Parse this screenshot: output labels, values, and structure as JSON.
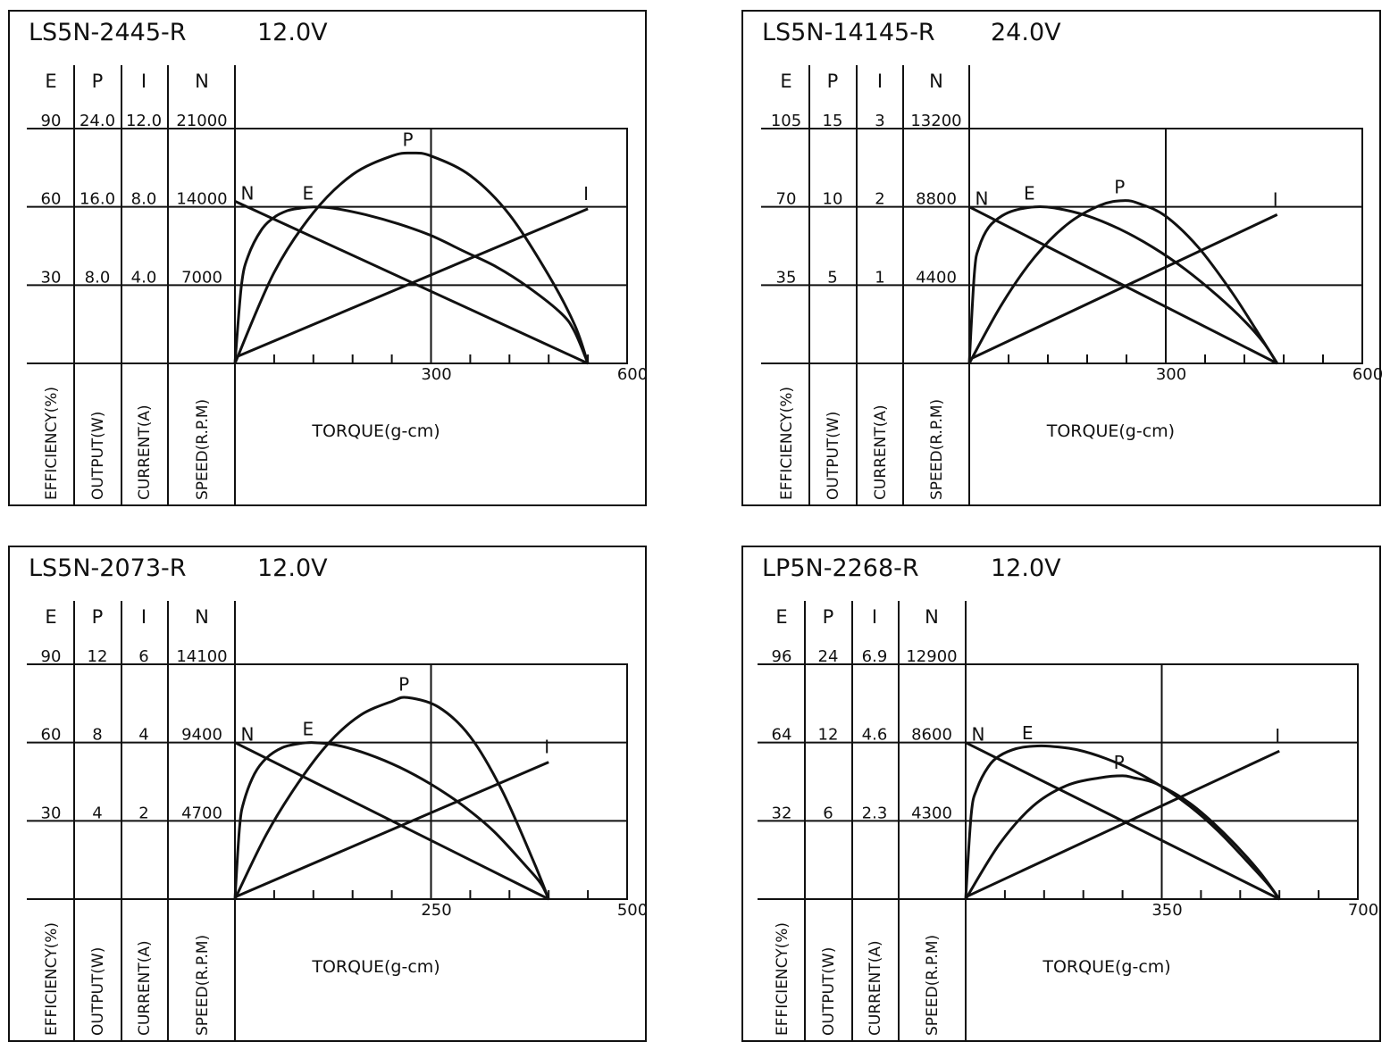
{
  "colors": {
    "ink": "#111111",
    "paper": "#ffffff"
  },
  "chart_data": [
    {
      "type": "line",
      "title": "LS5N-2445-R",
      "voltage": "12.0V",
      "xlabel": "TORQUE(g-cm)",
      "xlim": [
        0,
        600
      ],
      "xticks": [
        {
          "value": 300,
          "label": "300"
        },
        {
          "value": 600,
          "label": "600"
        }
      ],
      "columns": [
        {
          "symbol": "E",
          "unit_label": "EFFICIENCY(%)",
          "scale_max": 90,
          "ticks": [
            "30",
            "60",
            "90"
          ]
        },
        {
          "symbol": "P",
          "unit_label": "OUTPUT(W)",
          "scale_max": 24,
          "ticks": [
            "8.0",
            "16.0",
            "24.0"
          ]
        },
        {
          "symbol": "I",
          "unit_label": "CURRENT(A)",
          "scale_max": 12,
          "ticks": [
            "4.0",
            "8.0",
            "12.0"
          ]
        },
        {
          "symbol": "N",
          "unit_label": "SPEED(R.P.M)",
          "scale_max": 21000,
          "ticks": [
            "7000",
            "14000",
            "21000"
          ]
        }
      ],
      "series": [
        {
          "name": "N",
          "x": [
            0,
            540
          ],
          "y": [
            14500,
            0
          ]
        },
        {
          "name": "E",
          "x": [
            0,
            10,
            20,
            40,
            60,
            80,
            100,
            120,
            150,
            200,
            250,
            300,
            350,
            400,
            450,
            500,
            520,
            540
          ],
          "y": [
            0,
            30,
            41,
            51,
            56,
            58.5,
            59.5,
            60,
            59.5,
            57,
            53.5,
            49,
            43,
            37,
            29,
            19,
            12,
            0
          ]
        },
        {
          "name": "P",
          "x": [
            0,
            60,
            120,
            180,
            240,
            270,
            300,
            360,
            420,
            480,
            520,
            540
          ],
          "y": [
            0,
            9.3,
            15.4,
            19.3,
            21.2,
            21.5,
            21.2,
            19.2,
            15.2,
            9.0,
            3.9,
            0
          ]
        },
        {
          "name": "I",
          "x": [
            0,
            540
          ],
          "y": [
            0.3,
            7.9
          ]
        }
      ]
    },
    {
      "type": "line",
      "title": "LS5N-14145-R",
      "voltage": "24.0V",
      "xlabel": "TORQUE(g-cm)",
      "xlim": [
        0,
        600
      ],
      "xticks": [
        {
          "value": 300,
          "label": "300"
        },
        {
          "value": 600,
          "label": "600"
        }
      ],
      "columns": [
        {
          "symbol": "E",
          "unit_label": "EFFICIENCY(%)",
          "scale_max": 105,
          "ticks": [
            "35",
            "70",
            "105"
          ]
        },
        {
          "symbol": "P",
          "unit_label": "OUTPUT(W)",
          "scale_max": 15,
          "ticks": [
            "5",
            "10",
            "15"
          ]
        },
        {
          "symbol": "I",
          "unit_label": "CURRENT(A)",
          "scale_max": 3,
          "ticks": [
            "1",
            "2",
            "3"
          ]
        },
        {
          "symbol": "N",
          "unit_label": "SPEED(R.P.M)",
          "scale_max": 13200,
          "ticks": [
            "4400",
            "8800",
            "13200"
          ]
        }
      ],
      "series": [
        {
          "name": "N",
          "x": [
            0,
            470
          ],
          "y": [
            8800,
            0
          ]
        },
        {
          "name": "E",
          "x": [
            0,
            8,
            15,
            30,
            50,
            70,
            100,
            130,
            180,
            230,
            280,
            330,
            380,
            420,
            450,
            470
          ],
          "y": [
            0,
            41,
            52,
            61,
            66,
            68.5,
            70,
            69.5,
            66,
            60,
            52,
            42,
            30,
            19,
            9,
            0
          ]
        },
        {
          "name": "P",
          "x": [
            0,
            50,
            100,
            150,
            200,
            235,
            260,
            300,
            350,
            400,
            440,
            470
          ],
          "y": [
            0,
            3.8,
            6.8,
            8.9,
            10.1,
            10.4,
            10.2,
            9.4,
            7.4,
            4.6,
            2.0,
            0
          ]
        },
        {
          "name": "I",
          "x": [
            0,
            470
          ],
          "y": [
            0.05,
            1.9
          ]
        }
      ]
    },
    {
      "type": "line",
      "title": "LS5N-2073-R",
      "voltage": "12.0V",
      "xlabel": "TORQUE(g-cm)",
      "xlim": [
        0,
        500
      ],
      "xticks": [
        {
          "value": 250,
          "label": "250"
        },
        {
          "value": 500,
          "label": "500"
        }
      ],
      "columns": [
        {
          "symbol": "E",
          "unit_label": "EFFICIENCY(%)",
          "scale_max": 90,
          "ticks": [
            "30",
            "60",
            "90"
          ]
        },
        {
          "symbol": "P",
          "unit_label": "OUTPUT(W)",
          "scale_max": 12,
          "ticks": [
            "4",
            "8",
            "12"
          ]
        },
        {
          "symbol": "I",
          "unit_label": "CURRENT(A)",
          "scale_max": 6,
          "ticks": [
            "2",
            "4",
            "6"
          ]
        },
        {
          "symbol": "N",
          "unit_label": "SPEED(R.P.M)",
          "scale_max": 14100,
          "ticks": [
            "4700",
            "9400",
            "14100"
          ]
        }
      ],
      "series": [
        {
          "name": "N",
          "x": [
            0,
            400
          ],
          "y": [
            9400,
            0
          ]
        },
        {
          "name": "E",
          "x": [
            0,
            6,
            12,
            25,
            40,
            60,
            80,
            100,
            130,
            170,
            210,
            250,
            290,
            330,
            370,
            390,
            400
          ],
          "y": [
            0,
            28,
            38,
            48,
            54,
            58,
            59.5,
            60,
            59,
            55.5,
            50.5,
            44,
            36,
            26,
            13,
            6,
            0
          ]
        },
        {
          "name": "P",
          "x": [
            0,
            40,
            80,
            120,
            160,
            200,
            220,
            260,
            300,
            340,
            380,
            400
          ],
          "y": [
            0,
            3.3,
            5.9,
            8.0,
            9.4,
            10.1,
            10.3,
            9.8,
            8.3,
            5.6,
            2.0,
            0
          ]
        },
        {
          "name": "I",
          "x": [
            0,
            400
          ],
          "y": [
            0.05,
            3.5
          ]
        }
      ]
    },
    {
      "type": "line",
      "title": "LP5N-2268-R",
      "voltage": "12.0V",
      "xlabel": "TORQUE(g-cm)",
      "xlim": [
        0,
        700
      ],
      "xticks": [
        {
          "value": 350,
          "label": "350"
        },
        {
          "value": 700,
          "label": "700"
        }
      ],
      "columns": [
        {
          "symbol": "E",
          "unit_label": "EFFICIENCY(%)",
          "scale_max": 96,
          "ticks": [
            "32",
            "64",
            "96"
          ]
        },
        {
          "symbol": "P",
          "unit_label": "OUTPUT(W)",
          "scale_max": 24,
          "ticks": [
            "6",
            "12",
            "24"
          ]
        },
        {
          "symbol": "I",
          "unit_label": "CURRENT(A)",
          "scale_max": 6.9,
          "ticks": [
            "2.3",
            "4.6",
            "6.9"
          ]
        },
        {
          "symbol": "N",
          "unit_label": "SPEED(R.P.M)",
          "scale_max": 12900,
          "ticks": [
            "4300",
            "8600",
            "12900"
          ]
        }
      ],
      "series": [
        {
          "name": "N",
          "x": [
            0,
            560
          ],
          "y": [
            8600,
            0
          ]
        },
        {
          "name": "E",
          "x": [
            0,
            10,
            20,
            40,
            60,
            90,
            120,
            150,
            200,
            250,
            300,
            350,
            400,
            450,
            500,
            540,
            560
          ],
          "y": [
            0,
            35,
            45,
            54,
            58.5,
            61.5,
            62.5,
            62.5,
            61,
            57.5,
            52.5,
            46,
            38,
            28,
            16,
            6,
            0
          ]
        },
        {
          "name": "P",
          "x": [
            0,
            60,
            120,
            180,
            240,
            280,
            300,
            340,
            400,
            460,
            520,
            560
          ],
          "y": [
            0,
            5.6,
            9.5,
            11.6,
            12.4,
            12.6,
            12.4,
            11.8,
            9.8,
            6.8,
            3.1,
            0
          ]
        },
        {
          "name": "I",
          "x": [
            0,
            560
          ],
          "y": [
            0.06,
            4.35
          ]
        }
      ]
    }
  ]
}
